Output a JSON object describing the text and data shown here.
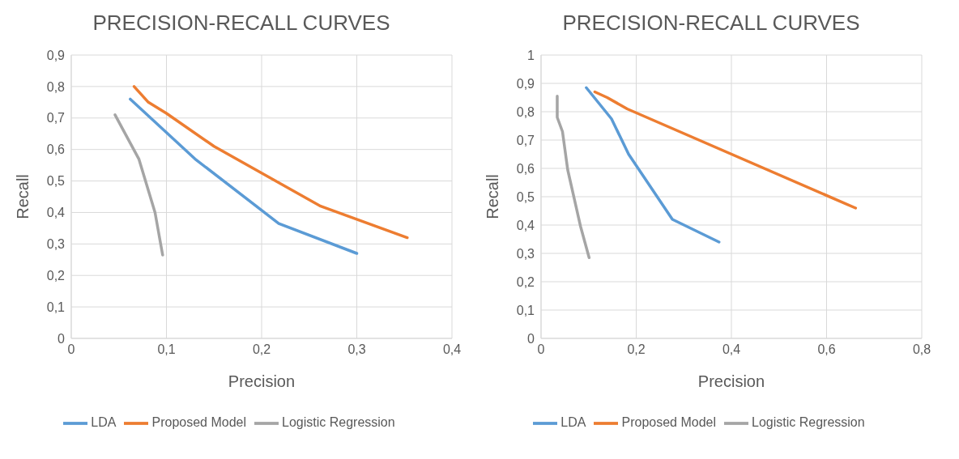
{
  "chart_data": [
    {
      "type": "line",
      "title": "PRECISION-RECALL CURVES",
      "xlabel": "Precision",
      "ylabel": "Recall",
      "xlim": [
        0,
        0.4
      ],
      "xticks": [
        {
          "value": 0,
          "label": "0"
        },
        {
          "value": 0.1,
          "label": "0,1"
        },
        {
          "value": 0.2,
          "label": "0,2"
        },
        {
          "value": 0.3,
          "label": "0,3"
        },
        {
          "value": 0.4,
          "label": "0,4"
        }
      ],
      "ylim": [
        0,
        0.9
      ],
      "yticks": [
        {
          "value": 0,
          "label": "0"
        },
        {
          "value": 0.1,
          "label": "0,1"
        },
        {
          "value": 0.2,
          "label": "0,2"
        },
        {
          "value": 0.3,
          "label": "0,3"
        },
        {
          "value": 0.4,
          "label": "0,4"
        },
        {
          "value": 0.5,
          "label": "0,5"
        },
        {
          "value": 0.6,
          "label": "0,6"
        },
        {
          "value": 0.7,
          "label": "0,7"
        },
        {
          "value": 0.8,
          "label": "0,8"
        },
        {
          "value": 0.9,
          "label": "0,9"
        }
      ],
      "grid": true,
      "legend": "bottom",
      "marker": "none",
      "line_style": "solid",
      "series": [
        {
          "name": "LDA",
          "color": "#5b9bd5",
          "x": [
            0.062,
            0.13,
            0.218,
            0.3
          ],
          "values": [
            0.76,
            0.57,
            0.365,
            0.27
          ]
        },
        {
          "name": "Proposed Model",
          "color": "#ed7d31",
          "x": [
            0.066,
            0.081,
            0.1,
            0.15,
            0.262,
            0.353
          ],
          "values": [
            0.8,
            0.75,
            0.715,
            0.61,
            0.42,
            0.32
          ]
        },
        {
          "name": "Logistic Regression",
          "color": "#a5a5a5",
          "x": [
            0.046,
            0.054,
            0.071,
            0.088,
            0.096
          ],
          "values": [
            0.71,
            0.665,
            0.57,
            0.4,
            0.265
          ]
        }
      ]
    },
    {
      "type": "line",
      "title": "PRECISION-RECALL CURVES",
      "xlabel": "Precision",
      "ylabel": "Recall",
      "xlim": [
        0,
        0.8
      ],
      "xticks": [
        {
          "value": 0,
          "label": "0"
        },
        {
          "value": 0.2,
          "label": "0,2"
        },
        {
          "value": 0.4,
          "label": "0,4"
        },
        {
          "value": 0.6,
          "label": "0,6"
        },
        {
          "value": 0.8,
          "label": "0,8"
        }
      ],
      "ylim": [
        0,
        1
      ],
      "yticks": [
        {
          "value": 0,
          "label": "0"
        },
        {
          "value": 0.1,
          "label": "0,1"
        },
        {
          "value": 0.2,
          "label": "0,2"
        },
        {
          "value": 0.3,
          "label": "0,3"
        },
        {
          "value": 0.4,
          "label": "0,4"
        },
        {
          "value": 0.5,
          "label": "0,5"
        },
        {
          "value": 0.6,
          "label": "0,6"
        },
        {
          "value": 0.7,
          "label": "0,7"
        },
        {
          "value": 0.8,
          "label": "0,8"
        },
        {
          "value": 0.9,
          "label": "0,9"
        },
        1
      ],
      "grid": true,
      "legend": "bottom",
      "marker": "none",
      "line_style": "solid",
      "series": [
        {
          "name": "LDA",
          "color": "#5b9bd5",
          "x": [
            0.095,
            0.148,
            0.184,
            0.276,
            0.374
          ],
          "values": [
            0.885,
            0.775,
            0.65,
            0.42,
            0.34
          ]
        },
        {
          "name": "Proposed Model",
          "color": "#ed7d31",
          "x": [
            0.113,
            0.139,
            0.181,
            0.661
          ],
          "values": [
            0.87,
            0.85,
            0.81,
            0.46
          ]
        },
        {
          "name": "Logistic Regression",
          "color": "#a5a5a5",
          "x": [
            0.034,
            0.034,
            0.045,
            0.056,
            0.083,
            0.101
          ],
          "values": [
            0.855,
            0.78,
            0.73,
            0.595,
            0.395,
            0.285
          ]
        }
      ]
    }
  ]
}
